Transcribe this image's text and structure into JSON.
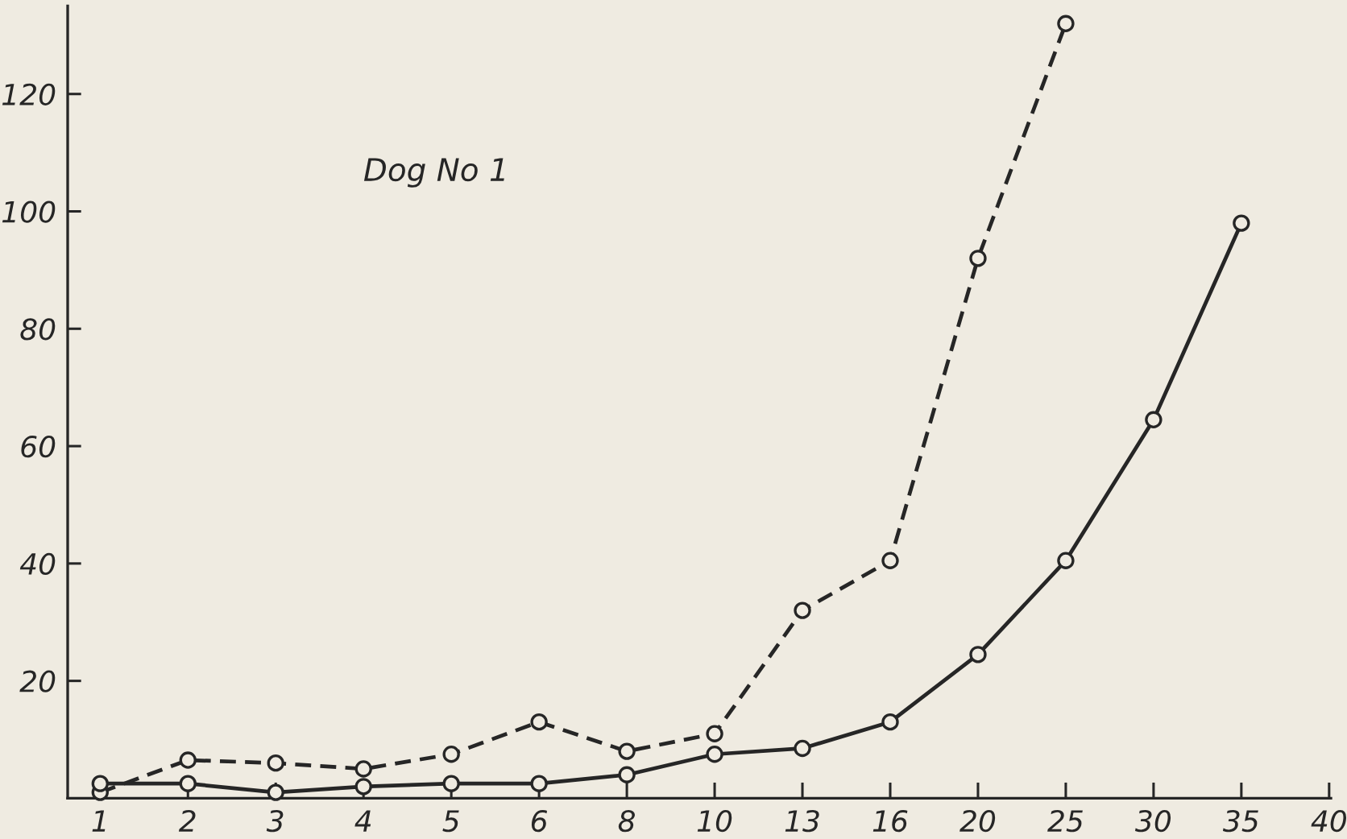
{
  "chart_data": {
    "type": "line",
    "categories": [
      "1",
      "2",
      "3",
      "4",
      "5",
      "6",
      "8",
      "10",
      "13",
      "16",
      "20",
      "25",
      "30",
      "35",
      "40"
    ],
    "series": [
      {
        "color": "#262626",
        "line_style": "dashed",
        "values": [
          1,
          6.5,
          6,
          5,
          7.5,
          13,
          8,
          11,
          32,
          40.5,
          92,
          132,
          null,
          null,
          null
        ]
      },
      {
        "color": "#262626",
        "line_style": "solid",
        "values": [
          2.5,
          2.5,
          1,
          2,
          2.5,
          2.5,
          4,
          7.5,
          8.5,
          13,
          24.5,
          40.5,
          64.5,
          98,
          null
        ]
      }
    ],
    "marker": "circle",
    "ylim": [
      0,
      135
    ],
    "yticks": [
      20,
      40,
      60,
      80,
      100,
      120
    ],
    "annotations": [
      "Dog No 1"
    ]
  }
}
